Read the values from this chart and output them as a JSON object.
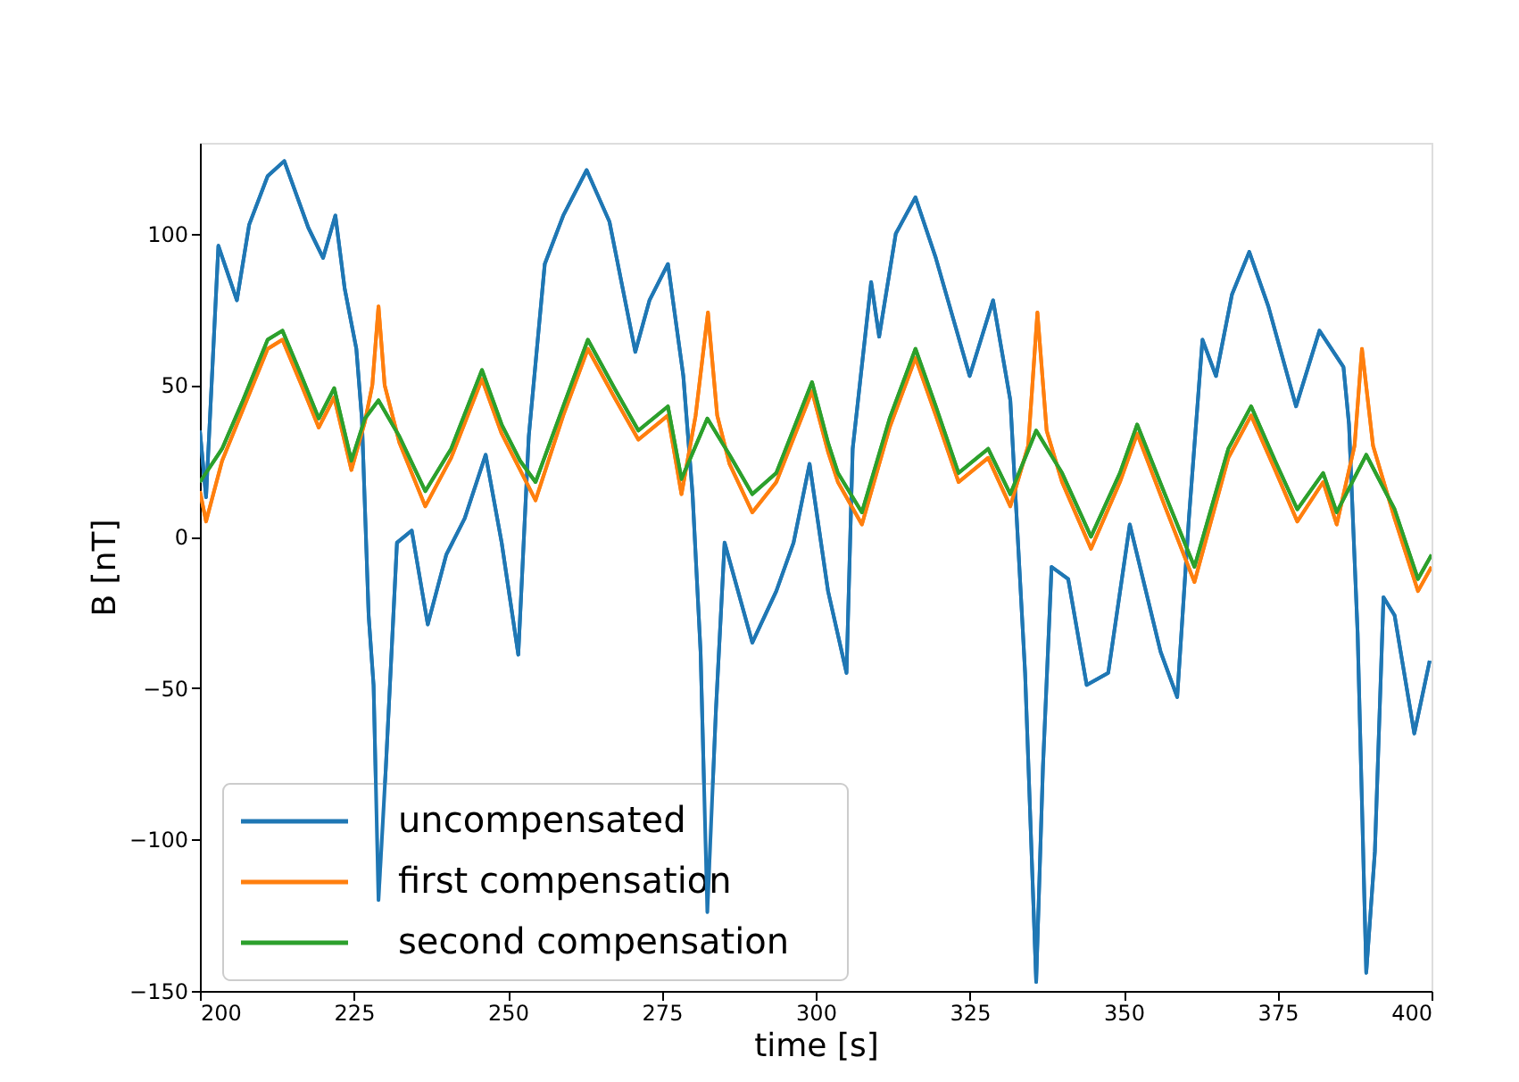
{
  "chart_data": {
    "type": "line",
    "xlabel": "time [s]",
    "ylabel": "B [nT]",
    "xlim": [
      200,
      400
    ],
    "ylim": [
      -150,
      130
    ],
    "xticks": [
      200,
      225,
      250,
      275,
      300,
      325,
      350,
      375,
      400
    ],
    "yticks": [
      -150,
      -100,
      -50,
      0,
      50,
      100
    ],
    "grid": false,
    "legend": "bottom left",
    "line_style": "solid",
    "series": [
      {
        "name": "uncompensated",
        "color": "#1f77b4",
        "x": [
          200,
          201,
          203,
          206,
          208,
          211,
          213.7,
          217.6,
          220,
          222,
          223.5,
          225.4,
          226.3,
          227.4,
          228.2,
          229,
          230.2,
          232,
          234.4,
          237,
          240,
          243,
          246.4,
          249,
          251.7,
          253.4,
          256,
          259,
          262.8,
          266.5,
          270.7,
          273,
          276,
          278.5,
          280,
          281.3,
          282.4,
          283.8,
          285.2,
          289.7,
          293.6,
          296.4,
          299,
          302,
          305,
          306,
          309,
          310.3,
          313,
          316.2,
          319.5,
          325,
          328.8,
          331.6,
          334,
          335.8,
          336.9,
          338.3,
          341,
          344,
          347.5,
          351,
          356,
          358.7,
          360.6,
          362.8,
          365,
          367.6,
          370.4,
          373.5,
          378,
          381.8,
          385.7,
          386.6,
          388,
          389.4,
          390.8,
          392.2,
          394,
          397.2,
          399.7
        ],
        "values": [
          35,
          13,
          96,
          78,
          103,
          119,
          124,
          102,
          92,
          106,
          82,
          62,
          39,
          -26,
          -49,
          -120,
          -76,
          -2,
          2,
          -29,
          -6,
          6,
          27,
          -2,
          -39,
          33,
          90,
          106,
          121,
          104,
          61,
          78,
          90,
          53,
          14,
          -38,
          -124,
          -57,
          -2,
          -35,
          -18,
          -2,
          24,
          -18,
          -45,
          29,
          84,
          66,
          100,
          112,
          92,
          53,
          78,
          45,
          -45,
          -147,
          -76,
          -10,
          -14,
          -49,
          -45,
          4,
          -38,
          -53,
          6,
          65,
          53,
          80,
          94,
          76,
          43,
          68,
          56,
          37,
          -32,
          -144,
          -104,
          -20,
          -26,
          -65,
          -41
        ]
      },
      {
        "name": "first compensation",
        "color": "#ff7f0e",
        "x": [
          200,
          201,
          203.6,
          207,
          211,
          213.4,
          216.5,
          219.3,
          221.8,
          224.6,
          226.8,
          228,
          229,
          230,
          232.4,
          236.6,
          240.8,
          245.8,
          249,
          252,
          254.5,
          259,
          263,
          267.3,
          271.2,
          276,
          278.2,
          280.5,
          282.5,
          284,
          286,
          289.7,
          293.6,
          299.4,
          302,
          303.6,
          307.5,
          312,
          316.2,
          319.5,
          323.2,
          328,
          331.6,
          334.5,
          336,
          337.5,
          340,
          344.7,
          349.4,
          352.2,
          356.7,
          361.5,
          367,
          370.7,
          374.6,
          378.2,
          382.4,
          384.6,
          387.5,
          388.7,
          390.5,
          394,
          397.8,
          400
        ],
        "values": [
          15,
          5,
          25,
          42,
          62,
          65,
          50,
          36,
          46,
          22,
          38,
          50,
          76,
          50,
          31,
          10,
          26,
          52,
          34,
          22,
          12,
          40,
          62,
          46,
          32,
          40,
          14,
          40,
          74,
          40,
          24,
          8,
          18,
          48,
          28,
          18,
          4,
          36,
          59,
          40,
          18,
          26,
          10,
          30,
          74,
          35,
          18,
          -4,
          18,
          34,
          10,
          -15,
          26,
          40,
          22,
          5,
          18,
          4,
          30,
          62,
          30,
          6,
          -18,
          -10
        ]
      },
      {
        "name": "second compensation",
        "color": "#2ca02c",
        "x": [
          200,
          203.6,
          207,
          211,
          213.4,
          216.5,
          219.3,
          221.8,
          224.6,
          226.8,
          229,
          232.4,
          236.6,
          240.8,
          245.8,
          249,
          252,
          254.5,
          259,
          263,
          267.3,
          271.2,
          276,
          278.2,
          282.4,
          286,
          289.7,
          293.6,
          299.4,
          302,
          303.6,
          307.5,
          312,
          316.2,
          319.5,
          323.2,
          328,
          331.6,
          335.8,
          340,
          344.7,
          349.4,
          352.2,
          356.7,
          361.5,
          367,
          370.7,
          374.6,
          378.2,
          382.4,
          384.6,
          389.4,
          394,
          397.8,
          400
        ],
        "values": [
          18,
          29,
          45,
          65,
          68,
          53,
          39,
          49,
          25,
          39,
          45,
          33,
          15,
          29,
          55,
          37,
          25,
          18,
          43,
          65,
          49,
          35,
          43,
          19,
          39,
          27,
          14,
          21,
          51,
          31,
          21,
          8,
          39,
          62,
          43,
          21,
          29,
          14,
          35,
          21,
          0,
          21,
          37,
          14,
          -10,
          29,
          43,
          25,
          9,
          21,
          8,
          27,
          9,
          -14,
          -6
        ]
      }
    ]
  }
}
